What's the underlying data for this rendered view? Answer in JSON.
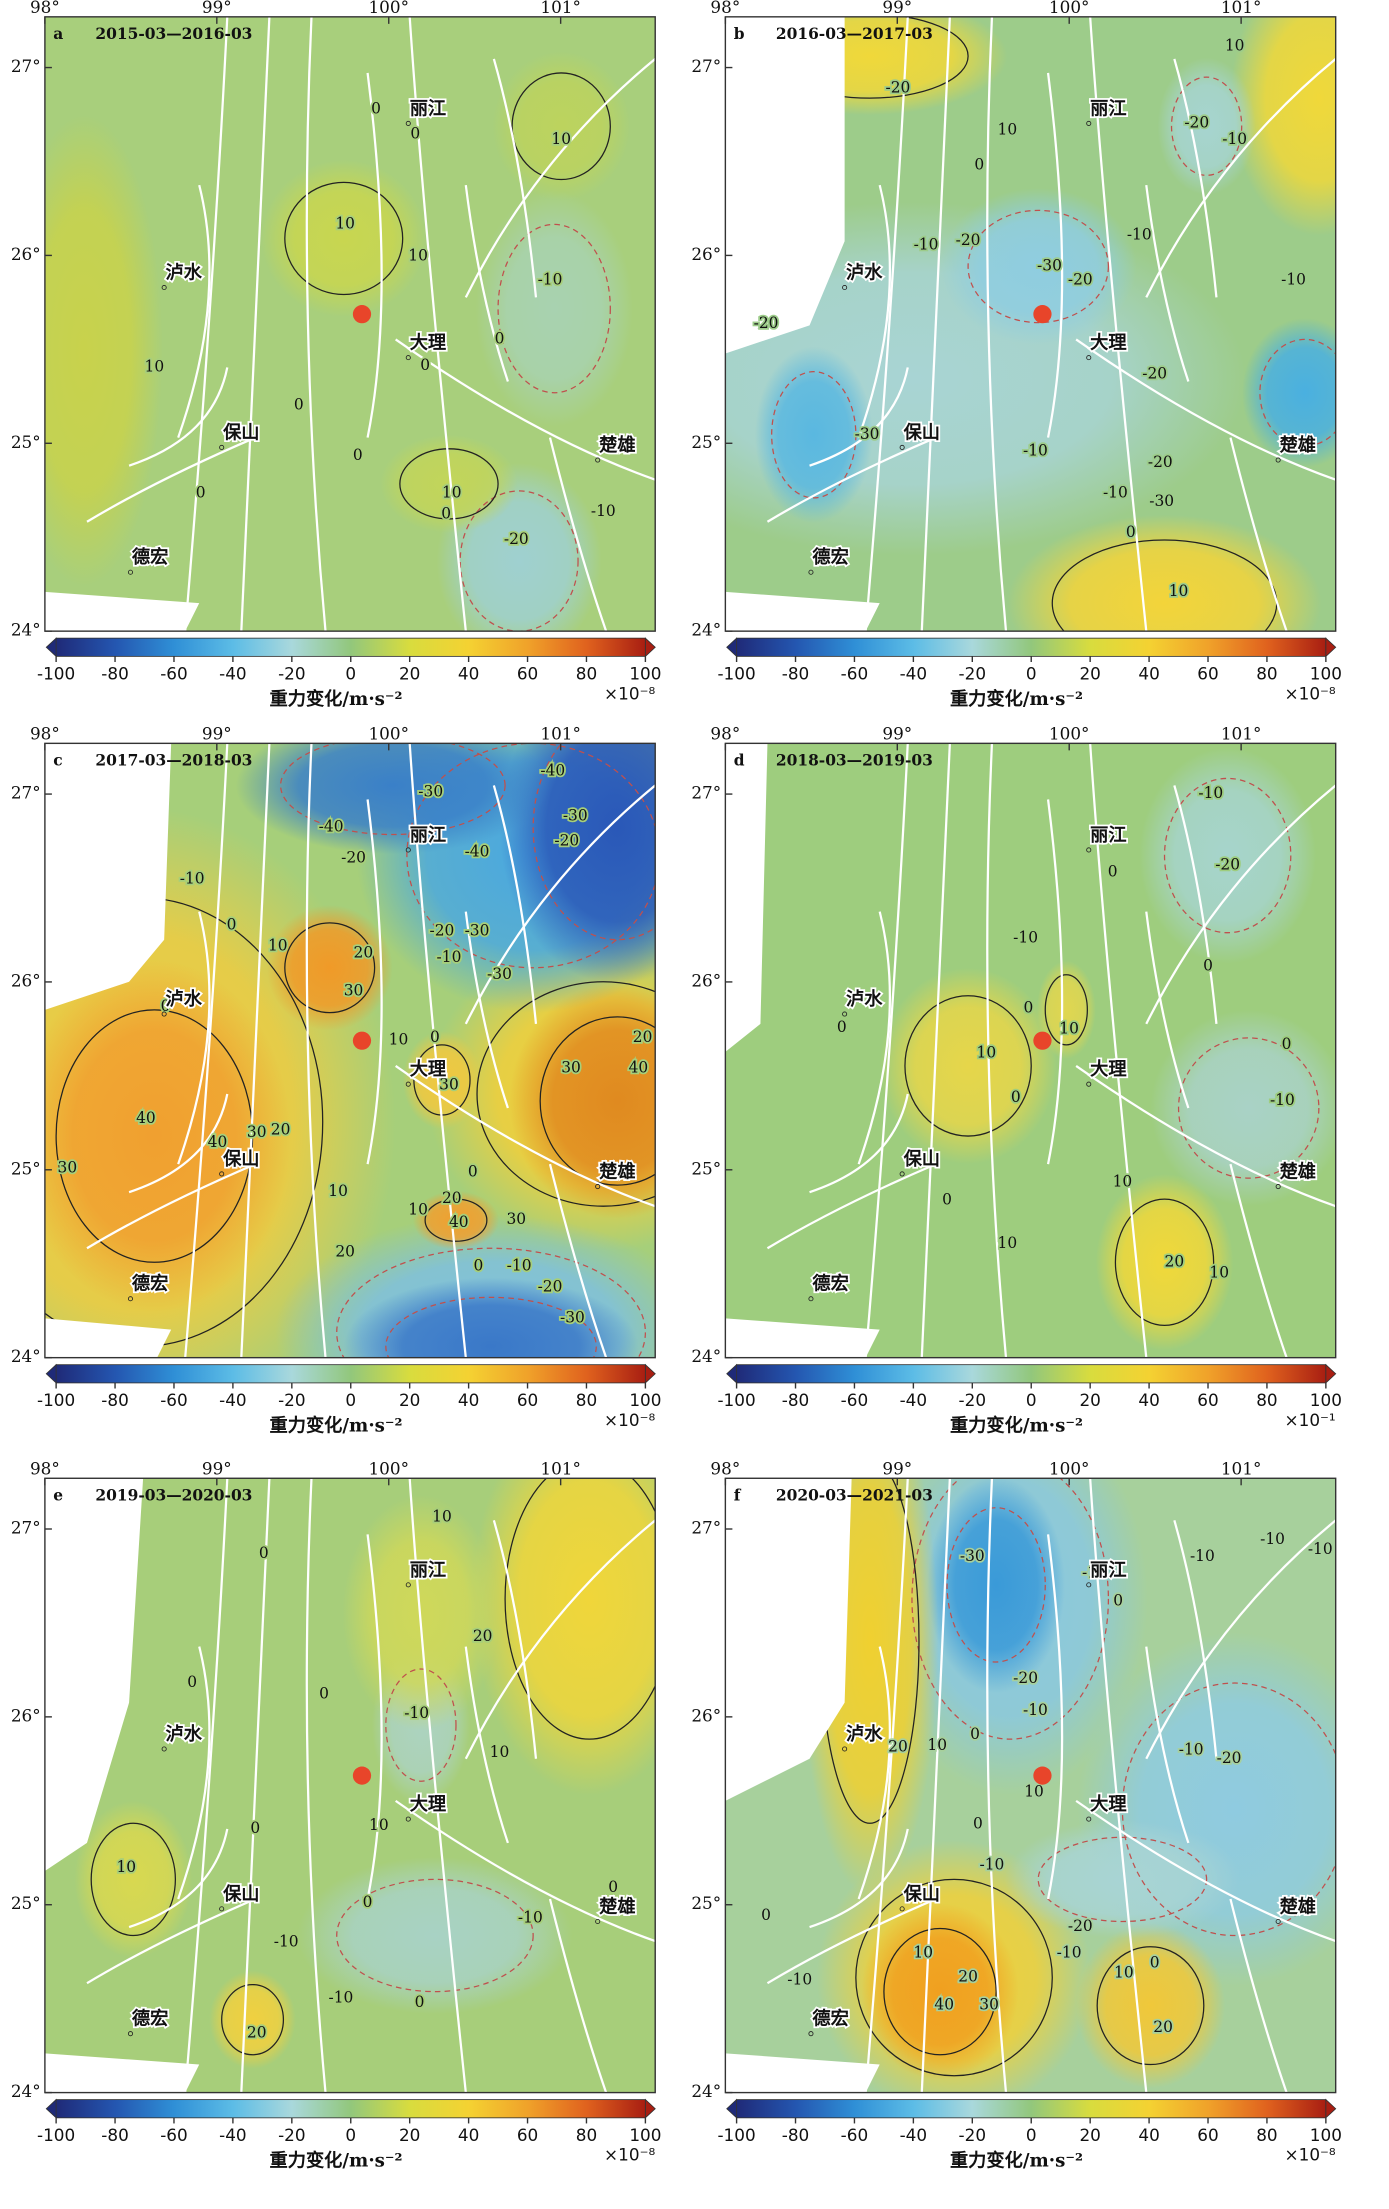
{
  "map": {
    "xlim": [
      98,
      101.55
    ],
    "ylim": [
      24,
      27.27
    ],
    "xticks": [
      {
        "value": 98,
        "label": "98°"
      },
      {
        "value": 99,
        "label": "99°"
      },
      {
        "value": 100,
        "label": "100°"
      },
      {
        "value": 101,
        "label": "101°"
      }
    ],
    "yticks": [
      {
        "value": 24,
        "label": "24°"
      },
      {
        "value": 25,
        "label": "25°"
      },
      {
        "value": 26,
        "label": "26°"
      },
      {
        "value": 27,
        "label": "27°"
      }
    ]
  },
  "cities": [
    "丽江",
    "泸水",
    "大理",
    "保山",
    "楚雄",
    "德宏"
  ],
  "colorbar": {
    "lim": [
      -100,
      100
    ],
    "ticks": [
      -100,
      -80,
      -60,
      -40,
      -20,
      0,
      20,
      40,
      60,
      80,
      100
    ],
    "title": "重力变化/m·s⁻²",
    "colormap": [
      "#1f2a78",
      "#2456b0",
      "#2f8fd6",
      "#5cbce6",
      "#a9d8dc",
      "#92c77c",
      "#d8dc3e",
      "#f4d232",
      "#f0a22a",
      "#e0621e",
      "#a81e12"
    ]
  },
  "panels": [
    {
      "label": "a",
      "period": "2015-03—2016-03",
      "unit": "×10⁻⁸",
      "contour_labels": [
        0,
        0,
        10,
        10,
        10,
        -10,
        0,
        0,
        10,
        0,
        0,
        0,
        10,
        0,
        -10,
        -20
      ]
    },
    {
      "label": "b",
      "period": "2016-03—2017-03",
      "unit": "×10⁻⁸",
      "contour_labels": [
        10,
        -20,
        -20,
        -10,
        10,
        0,
        -10,
        -20,
        -30,
        -20,
        -10,
        -10,
        -20,
        -20,
        -30,
        -10,
        -20,
        -10,
        -30,
        0,
        10
      ]
    },
    {
      "label": "c",
      "period": "2017-03—2018-03",
      "unit": "×10⁻⁸",
      "contour_labels": [
        -40,
        -30,
        -30,
        -40,
        -20,
        -40,
        -20,
        -10,
        0,
        10,
        20,
        -20,
        -30,
        -10,
        -30,
        0,
        30,
        10,
        20,
        0,
        30,
        30,
        40,
        20,
        40,
        40,
        30,
        30,
        0,
        10,
        20,
        10,
        40,
        30,
        20,
        0,
        -10,
        -20,
        -30
      ]
    },
    {
      "label": "d",
      "period": "2018-03—2019-03",
      "unit": "×10⁻¹",
      "contour_labels": [
        -10,
        -20,
        0,
        0,
        -10,
        0,
        0,
        10,
        10,
        0,
        -10,
        0,
        10,
        0,
        10,
        20,
        10
      ]
    },
    {
      "label": "e",
      "period": "2019-03—2020-03",
      "unit": "×10⁻⁸",
      "contour_labels": [
        10,
        0,
        20,
        0,
        -10,
        10,
        0,
        0,
        10,
        0,
        10,
        0,
        -10,
        -10,
        -10,
        20,
        0
      ]
    },
    {
      "label": "f",
      "period": "2020-03—2021-03",
      "unit": "×10⁻⁸",
      "contour_labels": [
        -30,
        -10,
        -10,
        -10,
        -10,
        0,
        -20,
        -10,
        0,
        20,
        10,
        -10,
        -20,
        10,
        0,
        -10,
        0,
        -20,
        -10,
        10,
        0,
        10,
        -10,
        20,
        40,
        30,
        20
      ]
    }
  ]
}
